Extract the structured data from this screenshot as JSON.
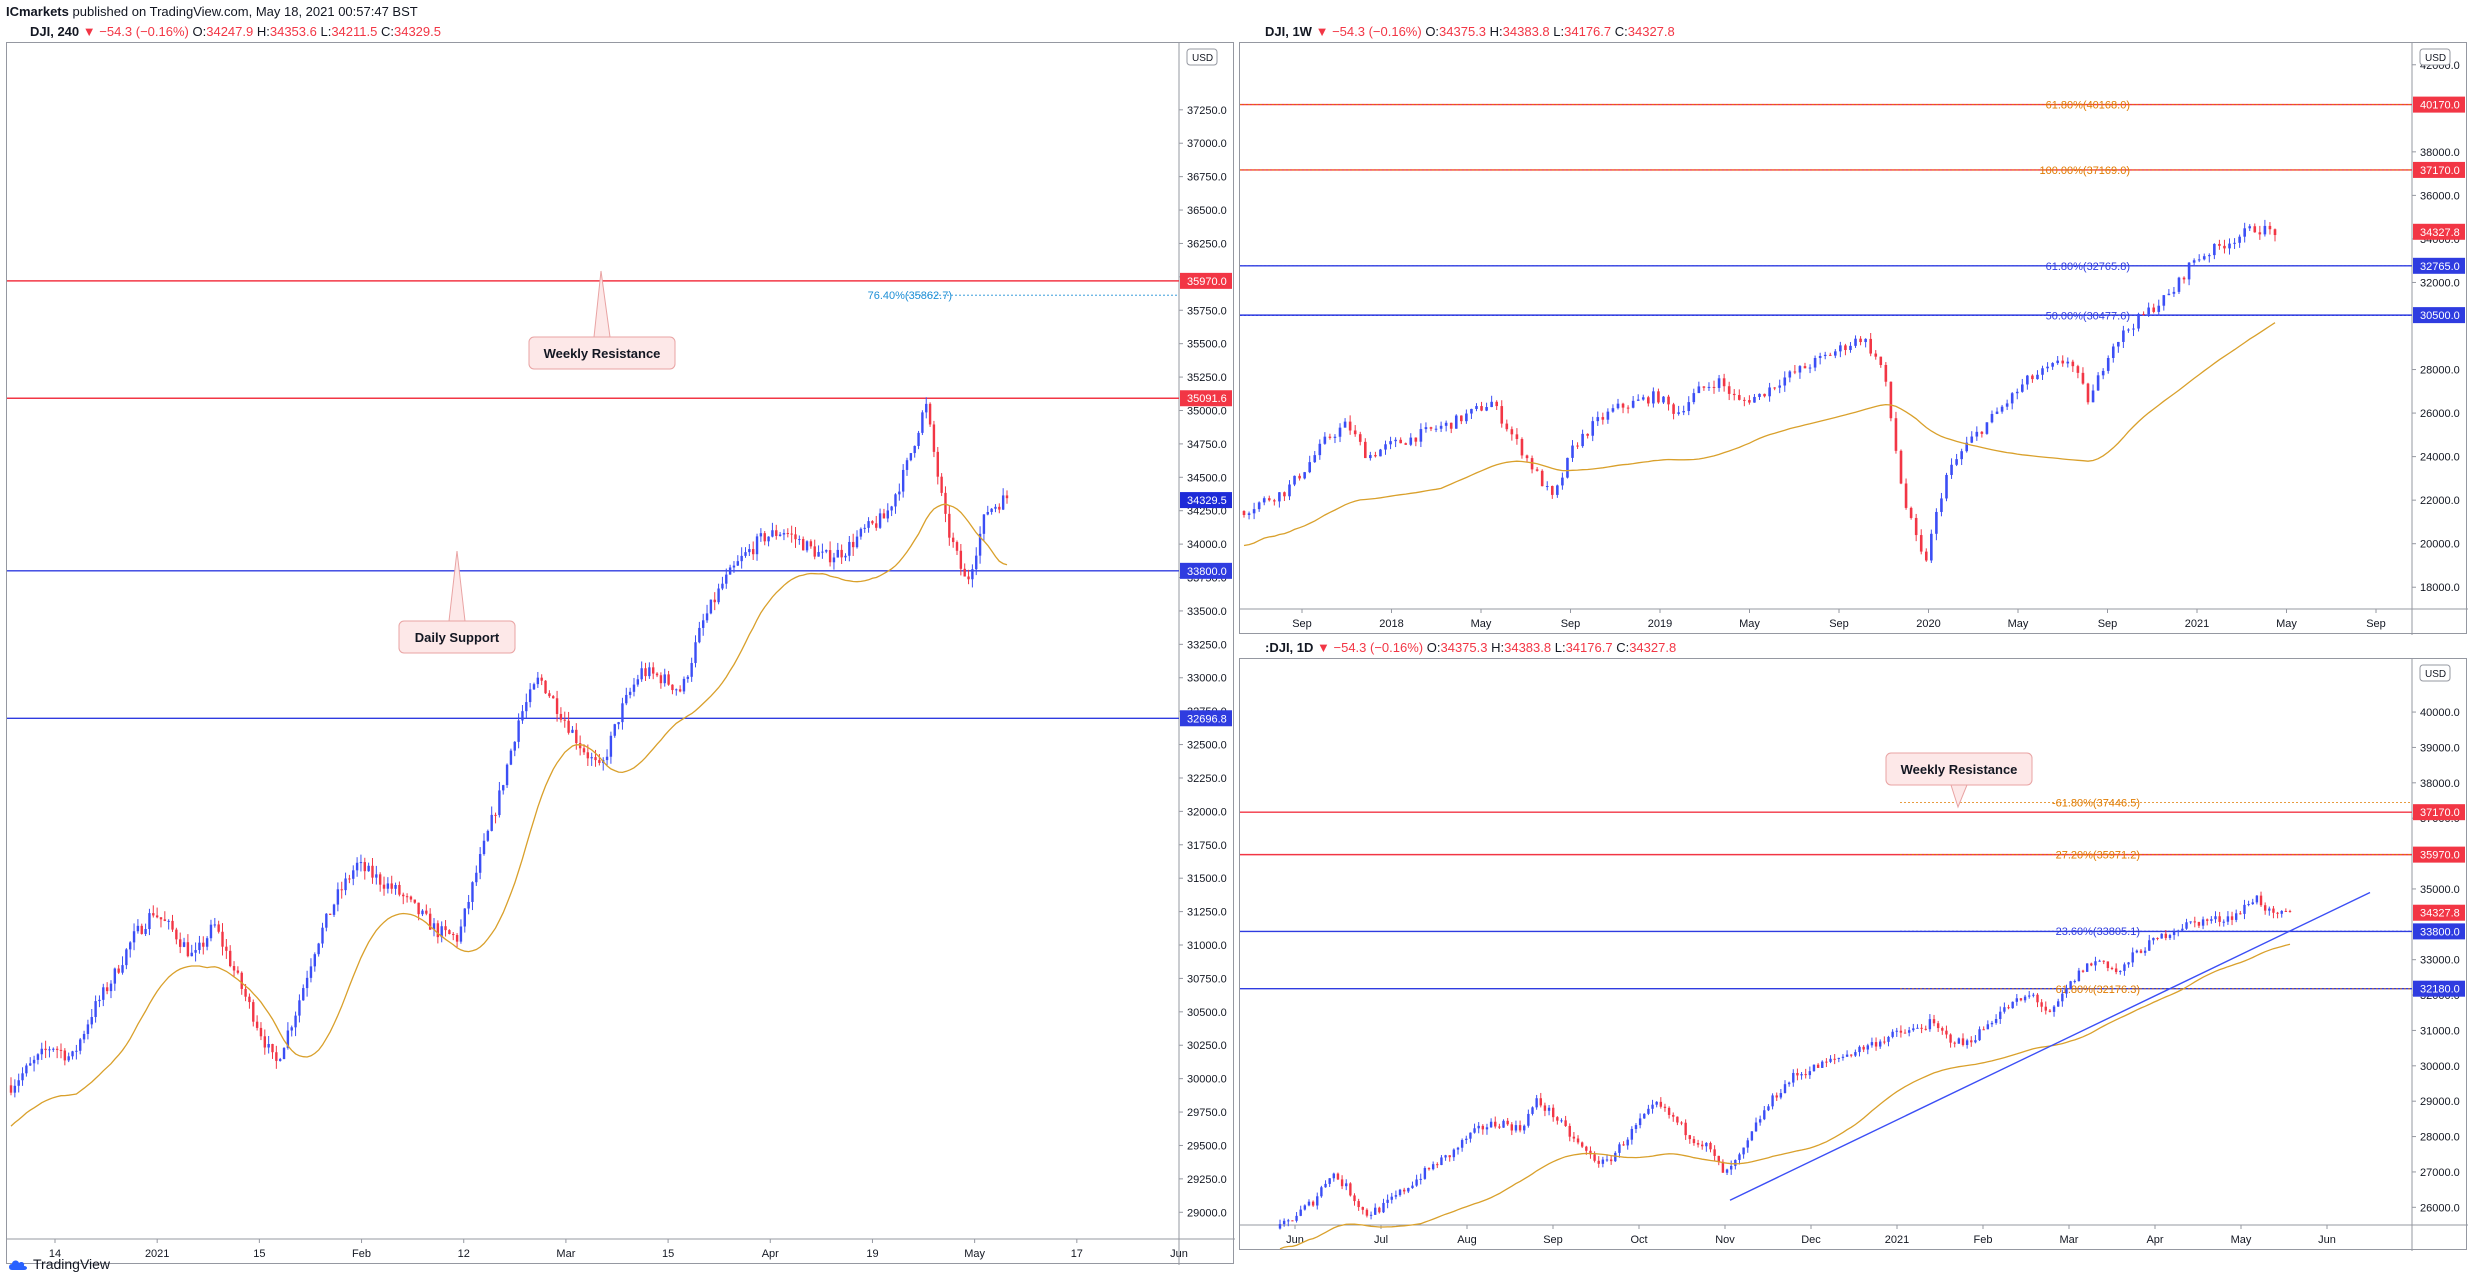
{
  "header": {
    "publisher": "ICmarkets",
    "published_text": "published on TradingView.com, May 18, 2021 00:57:47 BST"
  },
  "footer": {
    "brand": "TradingView"
  },
  "colors": {
    "up": "#3b4ef5",
    "down": "#f23645",
    "resistance": "#f23645",
    "support": "#2f3ce0",
    "ma": "#d9a02b",
    "fib": "#e07b00",
    "fib_blue": "#2f3ce0",
    "fib_cyan": "#1e8fd6"
  },
  "chart_data": [
    {
      "id": "left",
      "type": "candlestick",
      "symbol": "DJI, 240",
      "ohlc": {
        "change": "▼ −54.3 (−0.16%)",
        "open": "34247.9",
        "high": "34353.6",
        "low": "34211.5",
        "close": "34329.5"
      },
      "currency": "USD",
      "ylim": [
        28800,
        37750
      ],
      "y_ticks": [
        "37250.0",
        "37000.0",
        "36750.0",
        "36500.0",
        "36250.0",
        "36000.0",
        "35750.0",
        "35500.0",
        "35250.0",
        "35000.0",
        "34750.0",
        "34500.0",
        "34250.0",
        "34000.0",
        "33750.0",
        "33500.0",
        "33250.0",
        "33000.0",
        "32750.0",
        "32500.0",
        "32250.0",
        "32000.0",
        "31750.0",
        "31500.0",
        "31250.0",
        "31000.0",
        "30750.0",
        "30500.0",
        "30250.0",
        "30000.0",
        "29750.0",
        "29500.0",
        "29250.0",
        "29000.0"
      ],
      "x_ticks": [
        "14",
        "2021",
        "15",
        "Feb",
        "12",
        "Mar",
        "15",
        "Apr",
        "19",
        "May",
        "17",
        "Jun"
      ],
      "hlines": [
        {
          "price": 35970.0,
          "label": "35970.0",
          "kind": "resistance"
        },
        {
          "price": 35091.6,
          "label": "35091.6",
          "kind": "resistance"
        },
        {
          "price": 33800.0,
          "label": "33800.0",
          "kind": "support"
        },
        {
          "price": 32696.8,
          "label": "32696.8",
          "kind": "support"
        }
      ],
      "fib_levels": [
        {
          "price": 35862.7,
          "text": "76.40%(35862.7)"
        }
      ],
      "last_price": {
        "price": 34329.5,
        "label": "34329.5"
      },
      "annotations": [
        "Weekly Resistance",
        "Daily Support"
      ],
      "price_path": [
        29950,
        30100,
        30250,
        30150,
        30500,
        30750,
        31050,
        31250,
        31100,
        30900,
        31150,
        30800,
        30450,
        30100,
        30500,
        31000,
        31350,
        31600,
        31500,
        31400,
        31250,
        31100,
        31050,
        31600,
        32100,
        32700,
        33000,
        32750,
        32500,
        32300,
        32750,
        33050,
        33000,
        32900,
        33400,
        33700,
        33900,
        34050,
        34100,
        34000,
        33900,
        33950,
        34100,
        34200,
        34550,
        35050,
        34150,
        33700,
        34250,
        34350
      ]
    },
    {
      "id": "weekly",
      "type": "candlestick",
      "symbol": "DJI, 1W",
      "ohlc": {
        "change": "▼ −54.3 (−0.16%)",
        "open": "34375.3",
        "high": "34383.8",
        "low": "34176.7",
        "close": "34327.8"
      },
      "currency": "USD",
      "ylim": [
        17000,
        43000
      ],
      "y_ticks": [
        "42000.0",
        "38000.0",
        "36000.0",
        "34000.0",
        "32000.0",
        "28000.0",
        "26000.0",
        "24000.0",
        "22000.0",
        "20000.0",
        "18000.0"
      ],
      "x_ticks": [
        "Sep",
        "2018",
        "May",
        "Sep",
        "2019",
        "May",
        "Sep",
        "2020",
        "May",
        "Sep",
        "2021",
        "May",
        "Sep"
      ],
      "hlines": [
        {
          "price": 40170.0,
          "label": "40170.0",
          "kind": "resistance"
        },
        {
          "price": 37170.0,
          "label": "37170.0",
          "kind": "resistance"
        },
        {
          "price": 32765.0,
          "label": "32765.0",
          "kind": "support"
        },
        {
          "price": 30500.0,
          "label": "30500.0",
          "kind": "support"
        }
      ],
      "fib_levels": [
        {
          "price": 40168.0,
          "text": "61.80%(40168.0)"
        },
        {
          "price": 37169.0,
          "text": "100.00%(37169.0)"
        },
        {
          "price": 32765.8,
          "text": "61.80%(32765.8)"
        },
        {
          "price": 30477.6,
          "text": "50.00%(30477.6)"
        }
      ],
      "last_price": {
        "price": 34327.8,
        "label": "34327.8"
      },
      "price_path": [
        21500,
        22000,
        22400,
        23500,
        24800,
        25500,
        24000,
        24500,
        24800,
        25200,
        25500,
        26000,
        26500,
        25000,
        23500,
        22000,
        24500,
        25500,
        26200,
        26500,
        26800,
        26000,
        27000,
        27500,
        26500,
        26800,
        27500,
        28000,
        28500,
        29000,
        29500,
        28000,
        22000,
        19000,
        23000,
        24500,
        25500,
        26500,
        27500,
        28000,
        28500,
        26500,
        29000,
        30000,
        30800,
        31500,
        33000,
        33500,
        34000,
        34500,
        34327
      ]
    },
    {
      "id": "daily",
      "type": "candlestick",
      "symbol": ":DJI, 1D",
      "ohlc": {
        "change": "▼ −54.3 (−0.16%)",
        "open": "34375.3",
        "high": "34383.8",
        "low": "34176.7",
        "close": "34327.8"
      },
      "currency": "USD",
      "ylim": [
        25500,
        41500
      ],
      "y_ticks": [
        "40000.0",
        "39000.0",
        "38000.0",
        "37000.0",
        "35000.0",
        "33000.0",
        "32000.0",
        "31000.0",
        "30000.0",
        "29000.0",
        "28000.0",
        "27000.0",
        "26000.0"
      ],
      "x_ticks": [
        "Jun",
        "Jul",
        "Aug",
        "Sep",
        "Oct",
        "Nov",
        "Dec",
        "2021",
        "Feb",
        "Mar",
        "Apr",
        "May",
        "Jun"
      ],
      "hlines": [
        {
          "price": 37170.0,
          "label": "37170.0",
          "kind": "resistance"
        },
        {
          "price": 35970.0,
          "label": "35970.0",
          "kind": "resistance"
        },
        {
          "price": 33800.0,
          "label": "33800.0",
          "kind": "support"
        },
        {
          "price": 32180.0,
          "label": "32180.0",
          "kind": "support"
        }
      ],
      "fib_levels": [
        {
          "price": 37446.5,
          "text": "-61.80%(37446.5)"
        },
        {
          "price": 35971.2,
          "text": "27.20%(35971.2)"
        },
        {
          "price": 33805.1,
          "text": "23.60%(33805.1)"
        },
        {
          "price": 32176.3,
          "text": "61.80%(32176.3)"
        }
      ],
      "last_price": {
        "price": 34327.8,
        "label": "34327.8"
      },
      "annotations": [
        "Weekly Resistance"
      ],
      "price_path": [
        25400,
        25800,
        26200,
        27000,
        26500,
        25800,
        26000,
        26400,
        26800,
        27200,
        27500,
        28000,
        28300,
        28400,
        28200,
        29000,
        28600,
        28000,
        27500,
        27200,
        27800,
        28400,
        28900,
        28500,
        28000,
        27700,
        26900,
        27500,
        28500,
        29200,
        29700,
        29900,
        30100,
        30300,
        30500,
        30700,
        30900,
        31000,
        31200,
        30800,
        30600,
        31000,
        31500,
        31800,
        32000,
        31400,
        32200,
        32800,
        33000,
        32600,
        33200,
        33500,
        33800,
        34000,
        34100,
        34150,
        34300,
        34800,
        34200,
        34327
      ]
    }
  ]
}
